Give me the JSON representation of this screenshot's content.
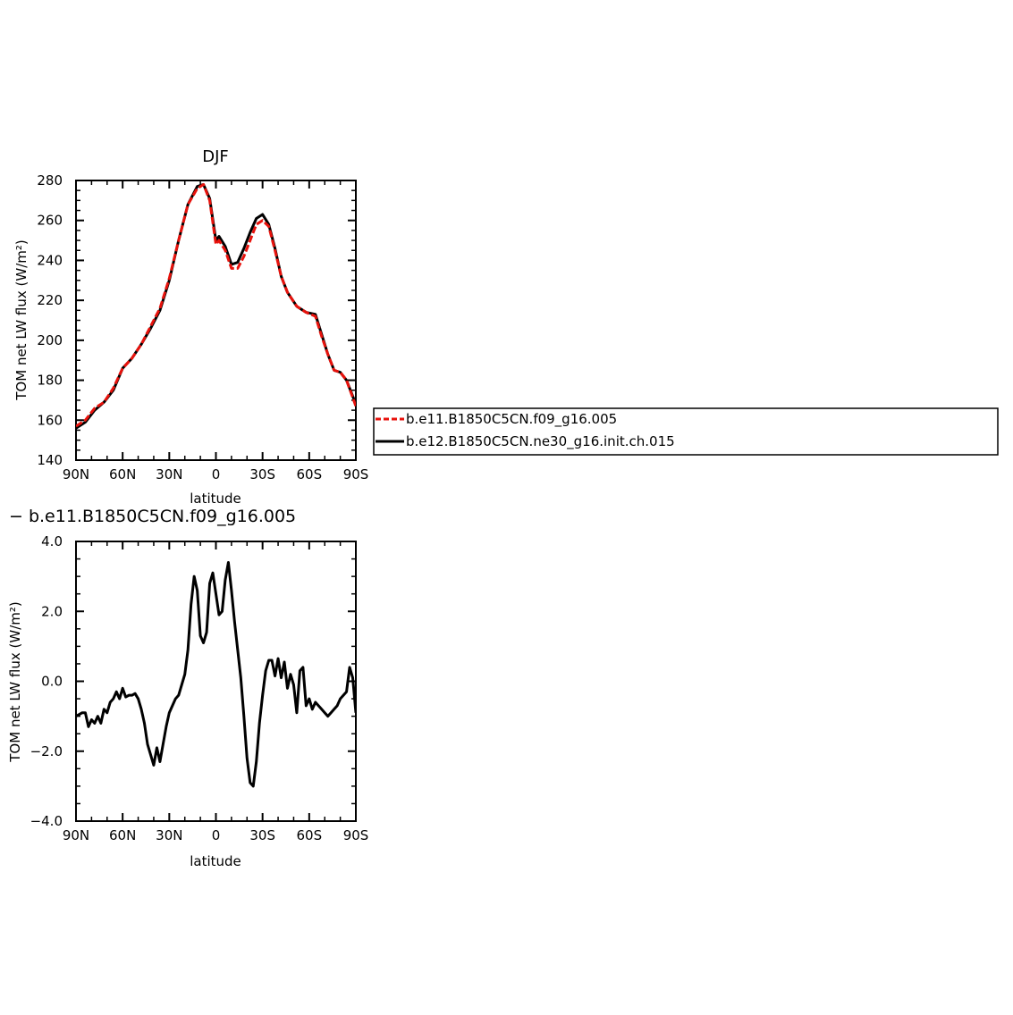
{
  "chart_data": [
    {
      "type": "line",
      "title": "DJF",
      "xlabel": "latitude",
      "ylabel": "TOM net LW flux (W/m²)",
      "x_ticks": [
        {
          "value": 90,
          "label": "90N"
        },
        {
          "value": 60,
          "label": "60N"
        },
        {
          "value": 30,
          "label": "30N"
        },
        {
          "value": 0,
          "label": "0"
        },
        {
          "value": -30,
          "label": "30S"
        },
        {
          "value": -60,
          "label": "60S"
        },
        {
          "value": -90,
          "label": "90S"
        }
      ],
      "xlim": [
        90,
        -90
      ],
      "ylim": [
        140,
        280
      ],
      "y_ticks": [
        "140",
        "160",
        "180",
        "200",
        "220",
        "240",
        "260",
        "280"
      ],
      "y_tick_values": [
        140,
        160,
        180,
        200,
        220,
        240,
        260,
        280
      ],
      "legend": {
        "placement": "right"
      },
      "series": [
        {
          "name": "b.e11.B1850C5CN.f09_g16.005",
          "color": "#e8120c",
          "dash": "dashed",
          "x": [
            90,
            84,
            78,
            72,
            66,
            60,
            54,
            48,
            42,
            36,
            30,
            24,
            18,
            12,
            8,
            4,
            0,
            -2,
            -6,
            -10,
            -14,
            -18,
            -22,
            -26,
            -30,
            -34,
            -38,
            -42,
            -46,
            -52,
            -58,
            -64,
            -68,
            -72,
            -76,
            -80,
            -84,
            -90
          ],
          "y": [
            157,
            160,
            166,
            169,
            176,
            186,
            191,
            198,
            207,
            216,
            231,
            250,
            268,
            276,
            278,
            270,
            248,
            250,
            245,
            236,
            236,
            242,
            250,
            258,
            260,
            257,
            245,
            232,
            224,
            217,
            214,
            212,
            202,
            193,
            185,
            184,
            180,
            167
          ]
        },
        {
          "name": "b.e12.B1850C5CN.ne30_g16.init.ch.015",
          "color": "#000000",
          "dash": "solid",
          "x": [
            90,
            84,
            78,
            72,
            66,
            60,
            54,
            48,
            42,
            36,
            30,
            24,
            18,
            12,
            8,
            4,
            0,
            -2,
            -6,
            -10,
            -14,
            -18,
            -22,
            -26,
            -30,
            -34,
            -38,
            -42,
            -46,
            -52,
            -58,
            -64,
            -68,
            -72,
            -76,
            -80,
            -84,
            -90
          ],
          "y": [
            156,
            159,
            165,
            169,
            175,
            186,
            191,
            198,
            206,
            215,
            230,
            250,
            268,
            277,
            278,
            271,
            250,
            252,
            247,
            238,
            239,
            246,
            254,
            261,
            263,
            258,
            246,
            232,
            224,
            217,
            214,
            213,
            203,
            193,
            185,
            184,
            180,
            168
          ]
        }
      ]
    },
    {
      "type": "line",
      "title": "− b.e11.B1850C5CN.f09_g16.005",
      "xlabel": "latitude",
      "ylabel": "TOM net LW flux (W/m²)",
      "x_ticks": [
        {
          "value": 90,
          "label": "90N"
        },
        {
          "value": 60,
          "label": "60N"
        },
        {
          "value": 30,
          "label": "30N"
        },
        {
          "value": 0,
          "label": "0"
        },
        {
          "value": -30,
          "label": "30S"
        },
        {
          "value": -60,
          "label": "60S"
        },
        {
          "value": -90,
          "label": "90S"
        }
      ],
      "xlim": [
        90,
        -90
      ],
      "ylim": [
        -4,
        4
      ],
      "y_ticks": [
        "−4.0",
        "−2.0",
        "0.0",
        "2.0",
        "4.0"
      ],
      "y_tick_values": [
        -4,
        -2,
        0,
        2,
        4
      ],
      "series": [
        {
          "color": "#000000",
          "dash": "solid",
          "x": [
            90,
            88,
            86,
            84,
            82,
            80,
            78,
            76,
            74,
            72,
            70,
            68,
            66,
            64,
            62,
            60,
            58,
            56,
            54,
            52,
            50,
            48,
            46,
            44,
            42,
            40,
            38,
            36,
            34,
            32,
            30,
            28,
            26,
            24,
            22,
            20,
            18,
            16,
            14,
            12,
            10,
            8,
            6,
            4,
            2,
            0,
            -2,
            -4,
            -6,
            -8,
            -10,
            -12,
            -14,
            -16,
            -18,
            -20,
            -22,
            -24,
            -26,
            -28,
            -30,
            -32,
            -34,
            -36,
            -38,
            -40,
            -42,
            -44,
            -46,
            -48,
            -50,
            -52,
            -54,
            -56,
            -58,
            -60,
            -62,
            -64,
            -66,
            -68,
            -70,
            -72,
            -74,
            -76,
            -78,
            -80,
            -82,
            -84,
            -86,
            -88,
            -90
          ],
          "y": [
            -1.0,
            -0.95,
            -0.9,
            -0.9,
            -1.3,
            -1.1,
            -1.2,
            -1.0,
            -1.2,
            -0.8,
            -0.9,
            -0.6,
            -0.5,
            -0.3,
            -0.5,
            -0.2,
            -0.45,
            -0.4,
            -0.4,
            -0.35,
            -0.5,
            -0.8,
            -1.2,
            -1.8,
            -2.1,
            -2.4,
            -1.9,
            -2.3,
            -1.8,
            -1.3,
            -0.9,
            -0.7,
            -0.5,
            -0.4,
            -0.1,
            0.2,
            0.9,
            2.2,
            3.0,
            2.6,
            1.3,
            1.1,
            1.4,
            2.8,
            3.1,
            2.5,
            1.9,
            2.0,
            2.9,
            3.4,
            2.6,
            1.7,
            0.9,
            0.1,
            -1.0,
            -2.2,
            -2.9,
            -3.0,
            -2.3,
            -1.2,
            -0.4,
            0.3,
            0.6,
            0.6,
            0.15,
            0.65,
            0.1,
            0.55,
            -0.2,
            0.2,
            -0.1,
            -0.9,
            0.3,
            0.4,
            -0.7,
            -0.5,
            -0.8,
            -0.6,
            -0.7,
            -0.8,
            -0.9,
            -1.0,
            -0.9,
            -0.8,
            -0.7,
            -0.5,
            -0.4,
            -0.3,
            0.4,
            0.1,
            -0.9
          ]
        }
      ]
    }
  ]
}
